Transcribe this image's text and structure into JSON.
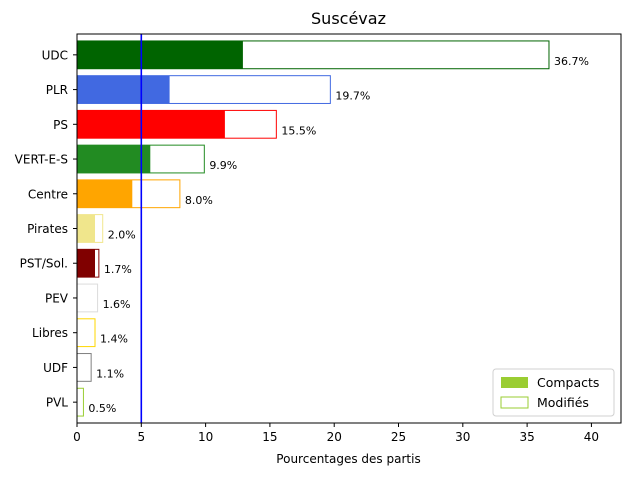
{
  "chart_data": {
    "type": "bar",
    "orientation": "horizontal",
    "title": "Suscévaz",
    "xlabel": "Pourcentages des partis",
    "ylabel": "",
    "xlim": [
      0,
      42.3
    ],
    "xticks": [
      0,
      5,
      10,
      15,
      20,
      25,
      30,
      35,
      40
    ],
    "threshold": {
      "value": 5,
      "color": "#0000ff"
    },
    "grid": false,
    "legend": {
      "placement": "bottom-right",
      "entries": [
        {
          "label": "Compacts",
          "style": "filled",
          "color": "#9acd32"
        },
        {
          "label": "Modifiés",
          "style": "outline",
          "color": "#9acd32"
        }
      ]
    },
    "categories": [
      "UDC",
      "PLR",
      "PS",
      "VERT-E-S",
      "Centre",
      "Pirates",
      "PST/Sol.",
      "PEV",
      "Libres",
      "UDF",
      "PVL"
    ],
    "series": [
      {
        "name": "Compacts",
        "values": [
          12.9,
          7.2,
          11.5,
          5.7,
          4.3,
          1.4,
          1.4,
          0,
          0,
          0,
          0
        ]
      },
      {
        "name": "Modifiés",
        "values": [
          36.7,
          19.7,
          15.5,
          9.9,
          8.0,
          2.0,
          1.7,
          1.6,
          1.4,
          1.1,
          0.5
        ]
      }
    ],
    "value_labels": [
      "36.7%",
      "19.7%",
      "15.5%",
      "9.9%",
      "8.0%",
      "2.0%",
      "1.7%",
      "1.6%",
      "1.4%",
      "1.1%",
      "0.5%"
    ],
    "colors": [
      "#006400",
      "#4169e1",
      "#ff0000",
      "#228b22",
      "#ffa500",
      "#f0e68c",
      "#800000",
      "#dcdcdc",
      "#ffd700",
      "#808080",
      "#9acd32"
    ]
  }
}
